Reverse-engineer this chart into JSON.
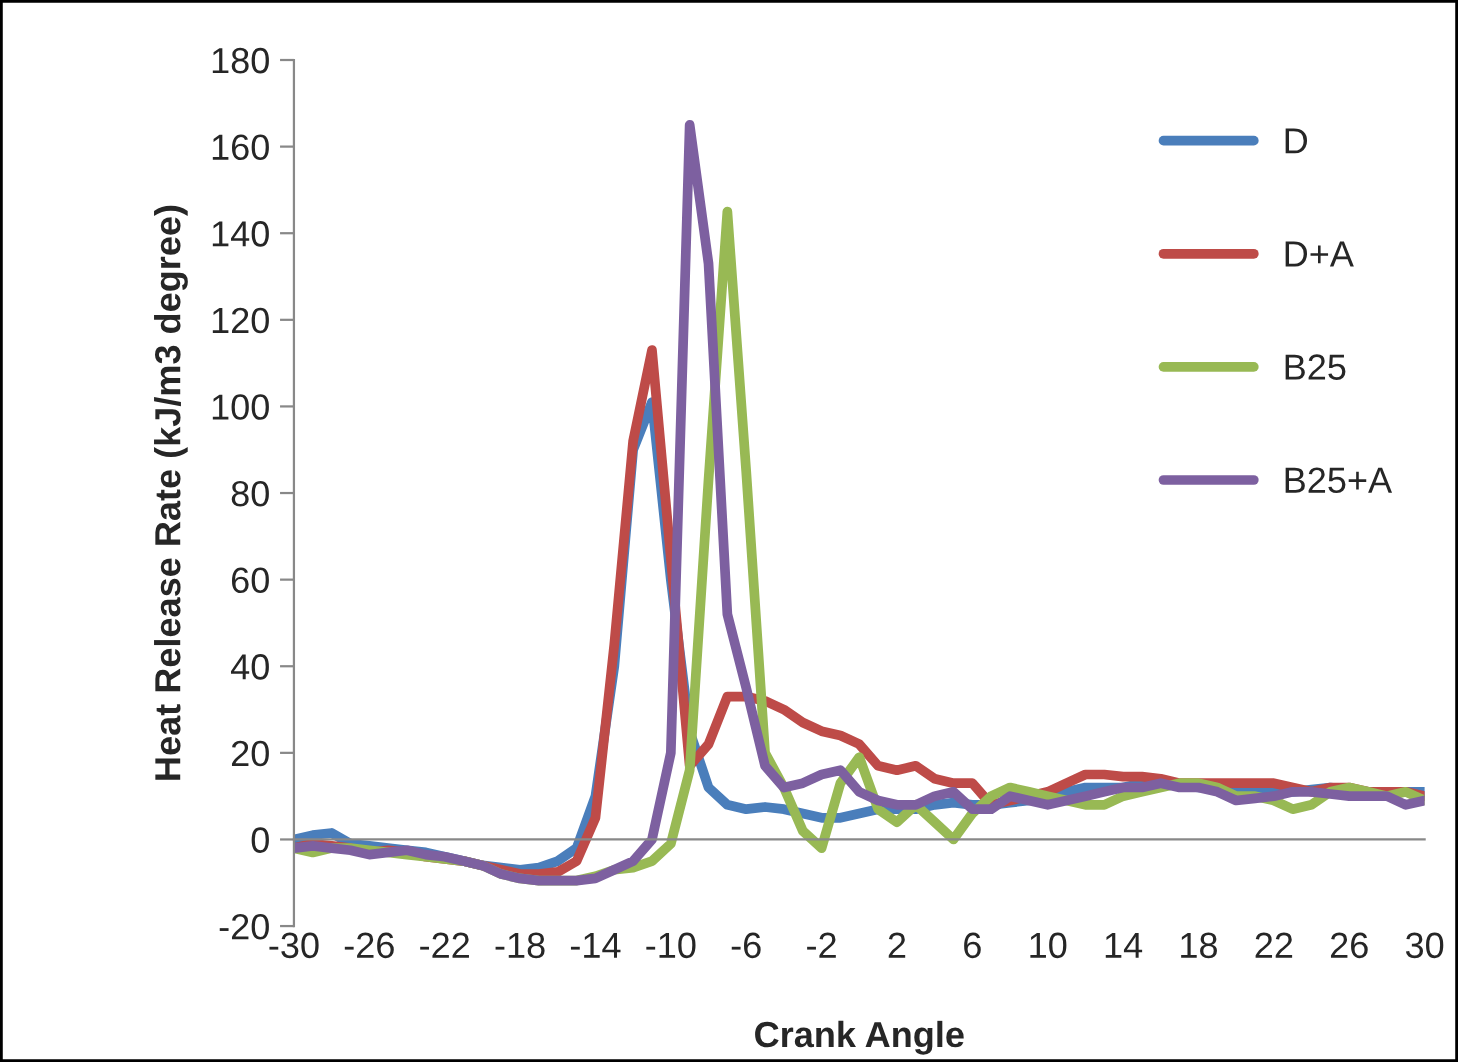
{
  "chart_data": {
    "type": "line",
    "xlabel": "Crank Angle",
    "ylabel": "Heat Release Rate (kJ/m3 degree)",
    "x": [
      -30,
      -29,
      -28,
      -27,
      -26,
      -25,
      -24,
      -23,
      -22,
      -21,
      -20,
      -19,
      -18,
      -17,
      -16,
      -15,
      -14,
      -13,
      -12,
      -11,
      -10,
      -9,
      -8,
      -7,
      -6,
      -5,
      -4,
      -3,
      -2,
      -1,
      0,
      1,
      2,
      3,
      4,
      5,
      6,
      7,
      8,
      9,
      10,
      11,
      12,
      13,
      14,
      15,
      16,
      17,
      18,
      19,
      20,
      21,
      22,
      23,
      24,
      25,
      26,
      27,
      28,
      29,
      30
    ],
    "series": [
      {
        "name": "D",
        "color": "#4a7ebb",
        "values": [
          0,
          1,
          1.5,
          -1,
          -1.5,
          -2,
          -2.5,
          -3,
          -4,
          -5,
          -6,
          -6.5,
          -7,
          -6.5,
          -5,
          -2,
          10,
          40,
          90,
          101,
          60,
          25,
          12,
          8,
          7,
          7.5,
          7,
          6,
          5,
          5,
          6,
          7,
          7,
          7,
          8,
          8.5,
          8,
          8,
          8.5,
          9,
          10,
          11,
          12,
          12,
          12,
          13,
          13,
          12.5,
          12,
          12,
          11.5,
          11,
          11,
          11,
          11.5,
          12,
          11.5,
          11,
          11,
          11,
          11
        ]
      },
      {
        "name": "D+A",
        "color": "#be4b48",
        "values": [
          -2,
          -1,
          -1.5,
          -2,
          -3,
          -2.5,
          -3,
          -4,
          -4.5,
          -5,
          -6,
          -7,
          -8,
          -8,
          -7.5,
          -5,
          5,
          45,
          92,
          113,
          65,
          17,
          22,
          33,
          33,
          32,
          30,
          27,
          25,
          24,
          22,
          17,
          16,
          17,
          14,
          13,
          13,
          8,
          9,
          10,
          11,
          13,
          15,
          15,
          14.5,
          14.5,
          14,
          13,
          13,
          13,
          13,
          13,
          13,
          12,
          11,
          12,
          12,
          11,
          11,
          11,
          10
        ]
      },
      {
        "name": "B25",
        "color": "#98b954",
        "values": [
          -2,
          -3,
          -2,
          -2,
          -2.5,
          -3,
          -3.5,
          -4,
          -4.5,
          -5,
          -6,
          -8,
          -9,
          -9.5,
          -9.5,
          -9.5,
          -8.5,
          -7,
          -6.5,
          -5,
          -1,
          16,
          83,
          145,
          85,
          20,
          12,
          2,
          -2,
          13,
          19,
          7,
          4,
          8,
          4,
          0,
          6,
          10,
          12,
          11,
          10,
          9,
          8,
          8,
          10,
          11,
          12,
          13,
          13,
          12,
          10,
          10,
          9,
          7,
          8,
          11,
          12,
          11,
          10,
          11,
          9
        ]
      },
      {
        "name": "B25+A",
        "color": "#7d60a0",
        "values": [
          -2,
          -1.5,
          -2,
          -2.5,
          -3.5,
          -3,
          -2.5,
          -3.5,
          -4,
          -5,
          -6,
          -8,
          -9,
          -9.5,
          -9.5,
          -9.5,
          -9,
          -7,
          -5,
          0,
          20,
          165,
          133,
          52,
          35,
          17,
          12,
          13,
          15,
          16,
          11,
          9,
          8,
          8,
          10,
          11,
          7,
          7,
          10,
          9,
          8,
          9,
          10,
          11,
          12,
          12,
          13,
          12,
          12,
          11,
          9,
          9.5,
          10,
          11,
          11,
          10.5,
          10,
          10,
          10,
          8,
          9
        ]
      }
    ],
    "xlim": [
      -30,
      30
    ],
    "xticks": [
      -30,
      -26,
      -22,
      -18,
      -14,
      -10,
      -6,
      -2,
      2,
      6,
      10,
      14,
      18,
      22,
      26,
      30
    ],
    "ylim": [
      -20,
      180
    ],
    "yticks": [
      -20,
      0,
      20,
      40,
      60,
      80,
      100,
      120,
      140,
      160,
      180
    ],
    "legend": "top right",
    "grid": false,
    "marker": "none",
    "line_style": "solid"
  }
}
